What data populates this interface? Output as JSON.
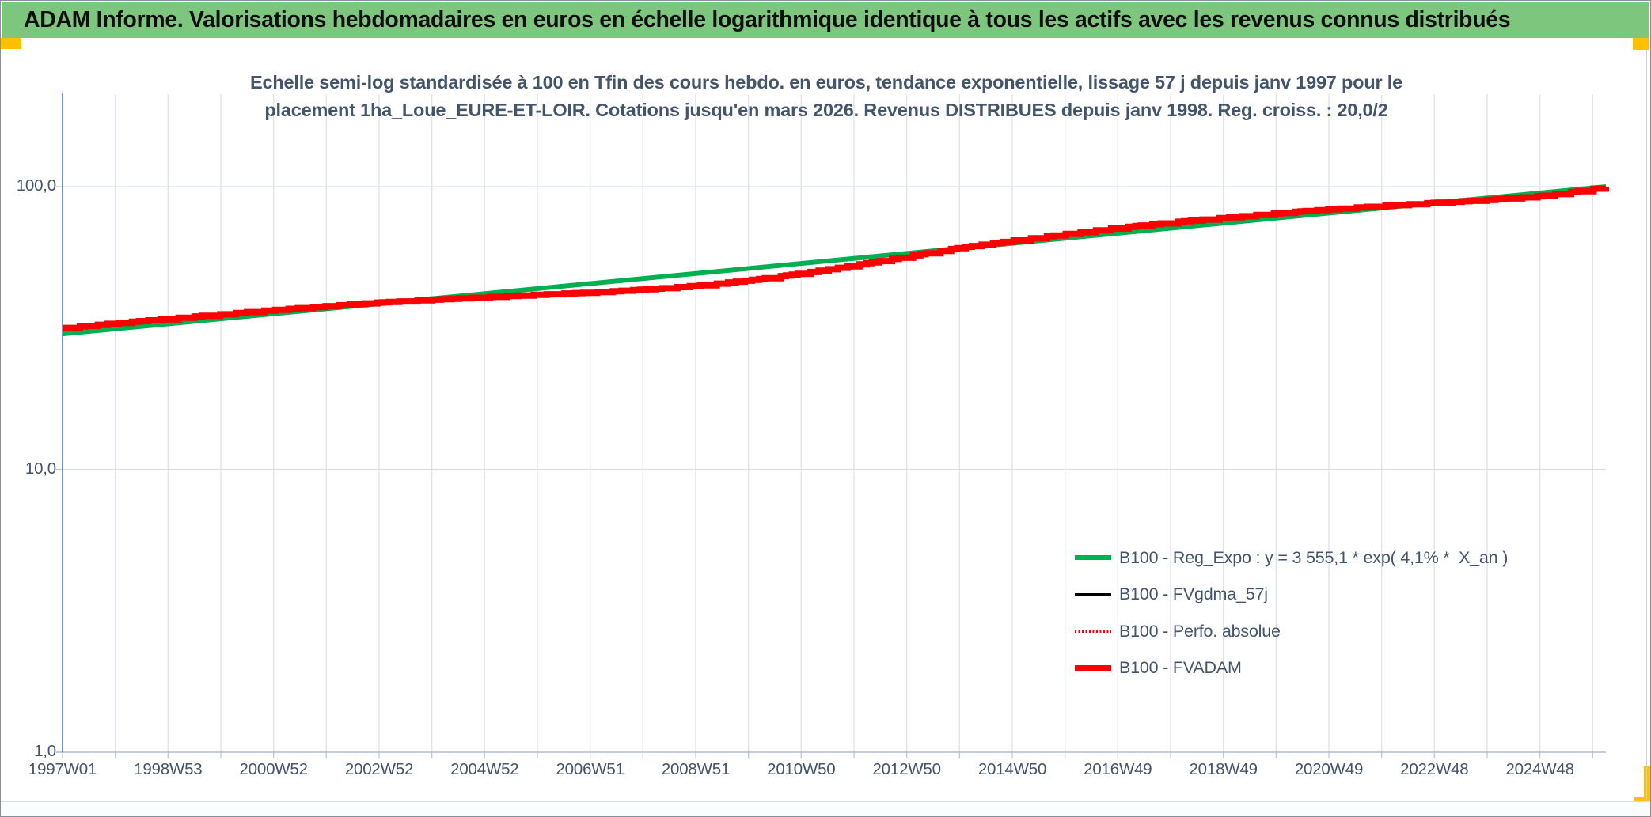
{
  "header": {
    "title": "ADAM Informe. Valorisations hebdomadaires en euros en échelle logarithmique identique à tous les actifs avec les revenus connus distribués"
  },
  "accent_colors": {
    "header_green": "#7DC67D",
    "gold": "#FFC000",
    "text_blue_gray": "#44546A",
    "axis_blue": "#4472C4",
    "gridline": "#dbe0e9"
  },
  "chart_data": {
    "type": "line",
    "title_line1": "Echelle semi-log standardisée à 100 en Tfin des cours hebdo. en euros, tendance exponentielle, lissage 57 j depuis janv 1997 pour le",
    "title_line2": "placement 1ha_Loue_EURE-ET-LOIR. Cotations jusqu'en mars 2026. Revenus DISTRIBUES depuis janv 1998. Reg. croiss. : 20,0/2",
    "y_scale": "log",
    "ylim": [
      1,
      200
    ],
    "y_ticks": [
      {
        "label": "100,0",
        "value": 100
      },
      {
        "label": "10,0",
        "value": 10
      },
      {
        "label": "1,0",
        "value": 1
      }
    ],
    "x_range_years": [
      1997.0,
      2026.25
    ],
    "x_label_interval_years": 2,
    "x_tick_labels": [
      "1997W01",
      "1998W53",
      "2000W52",
      "2002W52",
      "2004W52",
      "2006W51",
      "2008W51",
      "2010W50",
      "2012W50",
      "2014W50",
      "2016W49",
      "2018W49",
      "2020W49",
      "2022W48",
      "2024W48"
    ],
    "grid": "on",
    "legend_position": "inside-right-bottom",
    "series": [
      {
        "name": "B100 - Reg_Expo : y = 3 555,1 * exp( 4,1% *  X_an )",
        "color": "#00B050",
        "sample": "solid-thick",
        "model": {
          "formula": "y = 3 555,1 * exp( 4,1% * X_an )",
          "a": 3555.1,
          "growth_rate_pct_per_year": 4.1,
          "value_start": 30.1,
          "value_end": 100.0
        }
      },
      {
        "name": "B100 - FVgdma_57j",
        "color": "#000000",
        "sample": "solid-thin",
        "note": "coincides with B100 - FVADAM, hidden behind it"
      },
      {
        "name": "B100 - Perfo. absolue",
        "color": "#FF0000",
        "sample": "dotted-thin",
        "note": "coincides with B100 - FVADAM, hidden behind it"
      },
      {
        "name": "B100 - FVADAM",
        "color": "#FF0000",
        "sample": "solid-xthick",
        "stepped": true,
        "value_start": 31.6,
        "value_end": 100.0,
        "deviation_from_trend_pct": [
          [
            1997.0,
            5.0
          ],
          [
            1998.0,
            4.8
          ],
          [
            1999.0,
            4.3
          ],
          [
            2000.0,
            3.8
          ],
          [
            2001.0,
            3.2
          ],
          [
            2002.0,
            2.2
          ],
          [
            2003.0,
            1.0
          ],
          [
            2004.0,
            -0.8
          ],
          [
            2005.0,
            -2.8
          ],
          [
            2006.0,
            -4.8
          ],
          [
            2007.0,
            -7.0
          ],
          [
            2008.0,
            -8.6
          ],
          [
            2009.0,
            -9.5
          ],
          [
            2010.0,
            -9.2
          ],
          [
            2011.0,
            -7.8
          ],
          [
            2012.0,
            -5.5
          ],
          [
            2013.0,
            -2.5
          ],
          [
            2014.0,
            0.5
          ],
          [
            2015.0,
            2.2
          ],
          [
            2016.0,
            3.5
          ],
          [
            2017.0,
            4.5
          ],
          [
            2018.0,
            4.8
          ],
          [
            2019.0,
            4.5
          ],
          [
            2020.0,
            4.0
          ],
          [
            2021.0,
            3.2
          ],
          [
            2022.0,
            1.8
          ],
          [
            2023.0,
            0.2
          ],
          [
            2024.0,
            -1.5
          ],
          [
            2025.0,
            -2.5
          ],
          [
            2025.7,
            -1.5
          ],
          [
            2026.25,
            0.0
          ]
        ]
      }
    ]
  }
}
